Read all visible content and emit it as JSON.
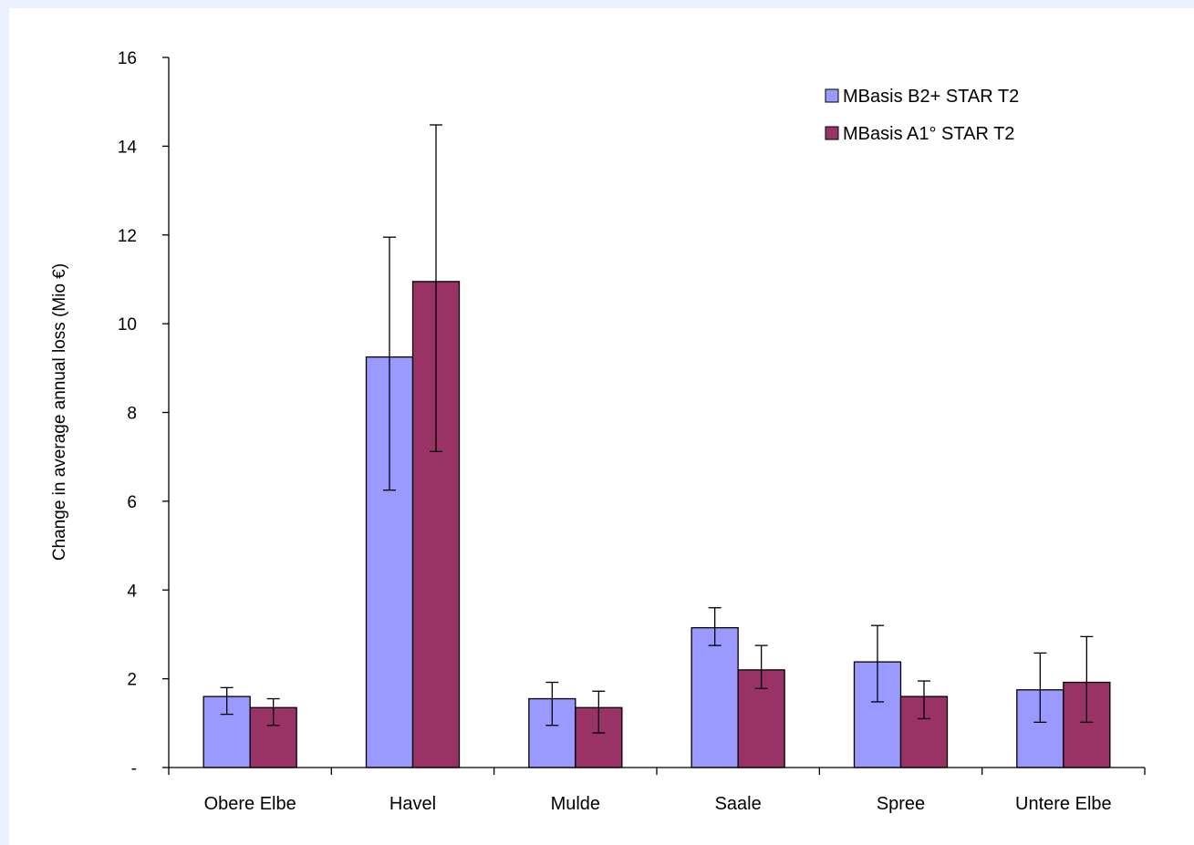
{
  "chart_data": {
    "type": "bar",
    "title": "",
    "xlabel": "",
    "ylabel": "Change in average annual loss (Mio €)",
    "ylim": [
      0,
      16
    ],
    "y_ticks": [
      {
        "value": 0,
        "label": "-"
      },
      {
        "value": 2,
        "label": "2"
      },
      {
        "value": 4,
        "label": "4"
      },
      {
        "value": 6,
        "label": "6"
      },
      {
        "value": 8,
        "label": "8"
      },
      {
        "value": 10,
        "label": "10"
      },
      {
        "value": 12,
        "label": "12"
      },
      {
        "value": 14,
        "label": "14"
      },
      {
        "value": 16,
        "label": "16"
      }
    ],
    "grid": false,
    "legend_position": "top-right",
    "categories": [
      "Obere Elbe",
      "Havel",
      "Mulde",
      "Saale",
      "Spree",
      "Untere Elbe"
    ],
    "series": [
      {
        "name": "MBasis B2+ STAR T2",
        "color": "#9999ff",
        "values": [
          1.6,
          9.25,
          1.55,
          3.15,
          2.38,
          1.75
        ],
        "error_low": [
          1.2,
          6.25,
          0.95,
          2.75,
          1.48,
          1.02
        ],
        "error_high": [
          1.8,
          11.95,
          1.92,
          3.6,
          3.2,
          2.58
        ]
      },
      {
        "name": "MBasis A1° STAR T2",
        "color": "#993366",
        "values": [
          1.35,
          10.95,
          1.35,
          2.2,
          1.6,
          1.92
        ],
        "error_low": [
          0.95,
          7.12,
          0.78,
          1.78,
          1.1,
          1.02
        ],
        "error_high": [
          1.55,
          14.48,
          1.72,
          2.75,
          1.95,
          2.95
        ]
      }
    ]
  }
}
